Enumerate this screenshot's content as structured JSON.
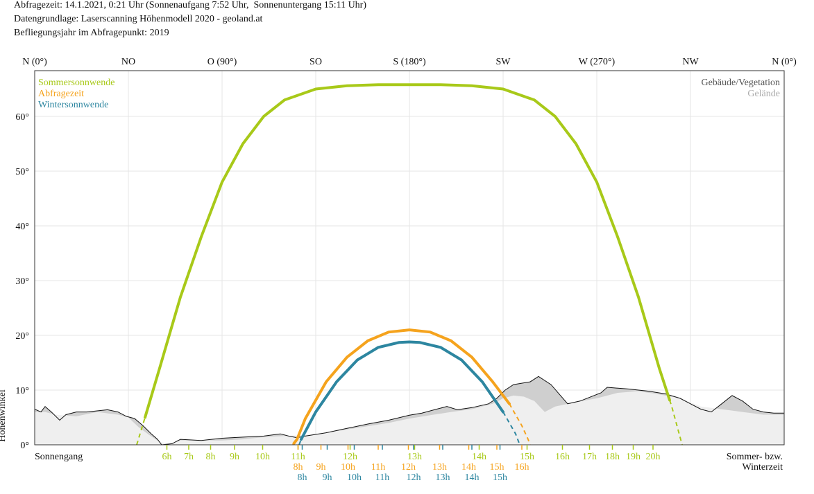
{
  "header": {
    "line1": "Abfragezeit: 14.1.2021, 0:21 Uhr (Sonnenaufgang 7:52 Uhr,  Sonnenuntergang 15:11 Uhr)",
    "line2": "Datengrundlage: Laserscanning Höhenmodell 2020 - geoland.at",
    "line3": "Befliegungsjahr im Abfragepunkt: 2019"
  },
  "colors": {
    "summer": "#a8c919",
    "query": "#f5a31d",
    "winter": "#2d86a0",
    "building": "#cfcfcf",
    "terrain": "#efefef",
    "grid": "#e6e6e6"
  },
  "chart_data": {
    "type": "line",
    "xlabel": "",
    "ylabel": "Höhenwinkel",
    "xlim": [
      0,
      360
    ],
    "ylim": [
      0,
      66
    ],
    "azimuth_ticks": [
      {
        "az": 0,
        "label": "N (0°)"
      },
      {
        "az": 45,
        "label": "NO"
      },
      {
        "az": 90,
        "label": "O (90°)"
      },
      {
        "az": 135,
        "label": "SO"
      },
      {
        "az": 180,
        "label": "S (180°)"
      },
      {
        "az": 225,
        "label": "SW"
      },
      {
        "az": 270,
        "label": "W (270°)"
      },
      {
        "az": 315,
        "label": "NW"
      },
      {
        "az": 360,
        "label": "N (0°)"
      }
    ],
    "elevation_ticks": [
      {
        "v": 0,
        "label": "0°"
      },
      {
        "v": 10,
        "label": "10°"
      },
      {
        "v": 20,
        "label": "20°"
      },
      {
        "v": 30,
        "label": "30°"
      },
      {
        "v": 40,
        "label": "40°"
      },
      {
        "v": 50,
        "label": "50°"
      },
      {
        "v": 60,
        "label": "60°"
      }
    ],
    "legend_left": [
      {
        "label": "Sommersonnwende",
        "color": "#a8c919"
      },
      {
        "label": "Abfragezeit",
        "color": "#f5a31d"
      },
      {
        "label": "Wintersonnwende",
        "color": "#2d86a0"
      }
    ],
    "legend_right": [
      {
        "label": "Gebäude/Vegetation",
        "color": "#555555"
      },
      {
        "label": "Gelände",
        "color": "#aaaaaa"
      }
    ],
    "left_footer": "Sonnengang",
    "right_footer_1": "Sommer- bzw.",
    "right_footer_2": "Winterzeit",
    "series": [
      {
        "name": "Sommersonnwende",
        "color": "#a8c919",
        "points": [
          [
            49,
            0
          ],
          [
            53,
            5
          ],
          [
            60,
            14
          ],
          [
            70,
            27
          ],
          [
            80,
            38
          ],
          [
            90,
            48
          ],
          [
            100,
            55
          ],
          [
            110,
            60
          ],
          [
            120,
            63
          ],
          [
            135,
            65
          ],
          [
            150,
            65.6
          ],
          [
            165,
            65.8
          ],
          [
            180,
            65.8
          ],
          [
            195,
            65.8
          ],
          [
            210,
            65.6
          ],
          [
            225,
            65
          ],
          [
            240,
            63
          ],
          [
            250,
            60
          ],
          [
            260,
            55
          ],
          [
            270,
            48
          ],
          [
            280,
            38
          ],
          [
            290,
            27
          ],
          [
            300,
            14
          ],
          [
            306,
            7
          ],
          [
            311,
            0
          ]
        ],
        "dashed_until": 53,
        "dashed_from": 305
      },
      {
        "name": "Abfragezeit",
        "color": "#f5a31d",
        "points": [
          [
            124,
            0
          ],
          [
            126,
            1
          ],
          [
            130,
            4.8
          ],
          [
            140,
            11.5
          ],
          [
            150,
            16
          ],
          [
            160,
            19
          ],
          [
            170,
            20.6
          ],
          [
            180,
            21
          ],
          [
            190,
            20.6
          ],
          [
            200,
            19
          ],
          [
            210,
            16
          ],
          [
            220,
            11.5
          ],
          [
            228,
            7.5
          ],
          [
            234,
            3.5
          ],
          [
            237,
            1
          ],
          [
            238,
            0
          ]
        ],
        "dashed_until": 124.5,
        "dashed_from": 228
      },
      {
        "name": "Wintersonnwende",
        "color": "#2d86a0",
        "points": [
          [
            127,
            0
          ],
          [
            128,
            1
          ],
          [
            135,
            6
          ],
          [
            145,
            11.5
          ],
          [
            155,
            15.5
          ],
          [
            165,
            17.8
          ],
          [
            175,
            18.7
          ],
          [
            180,
            18.8
          ],
          [
            185,
            18.7
          ],
          [
            195,
            17.8
          ],
          [
            205,
            15.5
          ],
          [
            215,
            11.5
          ],
          [
            225,
            6
          ],
          [
            231,
            2
          ],
          [
            233,
            0
          ]
        ],
        "dashed_until": 128,
        "dashed_from": 225
      }
    ],
    "terrain": [
      [
        0,
        6
      ],
      [
        5,
        6
      ],
      [
        10,
        5.5
      ],
      [
        20,
        5.2
      ],
      [
        30,
        6
      ],
      [
        40,
        5.5
      ],
      [
        45,
        5
      ],
      [
        50,
        3.2
      ],
      [
        55,
        1.8
      ],
      [
        60,
        0.5
      ],
      [
        65,
        0.2
      ],
      [
        70,
        0.8
      ],
      [
        80,
        0.8
      ],
      [
        90,
        0.8
      ],
      [
        100,
        1
      ],
      [
        110,
        1.4
      ],
      [
        120,
        1.6
      ],
      [
        130,
        1.8
      ],
      [
        140,
        2.2
      ],
      [
        150,
        2.8
      ],
      [
        160,
        3.4
      ],
      [
        170,
        4
      ],
      [
        180,
        4.8
      ],
      [
        190,
        5.4
      ],
      [
        200,
        6
      ],
      [
        210,
        6.5
      ],
      [
        220,
        7.5
      ],
      [
        225,
        8.5
      ],
      [
        230,
        9
      ],
      [
        235,
        8.8
      ],
      [
        240,
        8
      ],
      [
        245,
        6
      ],
      [
        250,
        7
      ],
      [
        260,
        7.8
      ],
      [
        270,
        8.5
      ],
      [
        280,
        9.5
      ],
      [
        290,
        9.8
      ],
      [
        300,
        9.2
      ],
      [
        310,
        8.5
      ],
      [
        320,
        7
      ],
      [
        330,
        6.5
      ],
      [
        340,
        6
      ],
      [
        350,
        5.5
      ],
      [
        360,
        5.5
      ]
    ],
    "buildings": [
      [
        0,
        6.5
      ],
      [
        3,
        6
      ],
      [
        5,
        7
      ],
      [
        8,
        6
      ],
      [
        12,
        4.5
      ],
      [
        15,
        5.5
      ],
      [
        20,
        6
      ],
      [
        25,
        6
      ],
      [
        30,
        6.2
      ],
      [
        35,
        6.4
      ],
      [
        40,
        6
      ],
      [
        44,
        5.2
      ],
      [
        48,
        4.8
      ],
      [
        52,
        3.5
      ],
      [
        56,
        2
      ],
      [
        59,
        1
      ],
      [
        61,
        0
      ],
      [
        66,
        0.2
      ],
      [
        70,
        1
      ],
      [
        80,
        0.8
      ],
      [
        90,
        1.2
      ],
      [
        100,
        1.4
      ],
      [
        110,
        1.6
      ],
      [
        118,
        2
      ],
      [
        122,
        1.6
      ],
      [
        126,
        1.3
      ],
      [
        130,
        1.6
      ],
      [
        140,
        2.2
      ],
      [
        150,
        3
      ],
      [
        160,
        3.8
      ],
      [
        170,
        4.5
      ],
      [
        180,
        5.4
      ],
      [
        186,
        5.8
      ],
      [
        192,
        6.4
      ],
      [
        198,
        7
      ],
      [
        203,
        6.4
      ],
      [
        210,
        6.8
      ],
      [
        218,
        7.5
      ],
      [
        222,
        8.5
      ],
      [
        226,
        10
      ],
      [
        230,
        11
      ],
      [
        238,
        11.5
      ],
      [
        242,
        12.5
      ],
      [
        248,
        11
      ],
      [
        256,
        7.5
      ],
      [
        262,
        8
      ],
      [
        272,
        9.5
      ],
      [
        275,
        10.5
      ],
      [
        285,
        10.2
      ],
      [
        295,
        9.8
      ],
      [
        303,
        9.3
      ],
      [
        310,
        8.5
      ],
      [
        315,
        7.5
      ],
      [
        320,
        6.5
      ],
      [
        325,
        6
      ],
      [
        330,
        7.5
      ],
      [
        335,
        9
      ],
      [
        340,
        8
      ],
      [
        345,
        6.5
      ],
      [
        350,
        6
      ],
      [
        355,
        5.8
      ],
      [
        360,
        5.8
      ]
    ],
    "hour_ticks": [
      {
        "series": "Sommersonnwende",
        "color": "#a8c919",
        "row": 0,
        "items": [
          {
            "az": 63.5,
            "label": "6h"
          },
          {
            "az": 74,
            "label": "7h"
          },
          {
            "az": 84.5,
            "label": "8h"
          },
          {
            "az": 96,
            "label": "9h"
          },
          {
            "az": 109.5,
            "label": "10h"
          },
          {
            "az": 126.5,
            "label": "11h"
          },
          {
            "az": 151.5,
            "label": "12h"
          },
          {
            "az": 182.5,
            "label": "13h"
          },
          {
            "az": 213.5,
            "label": "14h"
          },
          {
            "az": 236.5,
            "label": "15h"
          },
          {
            "az": 253.5,
            "label": "16h"
          },
          {
            "az": 266.5,
            "label": "17h"
          },
          {
            "az": 277.5,
            "label": "18h"
          },
          {
            "az": 287.5,
            "label": "19h"
          },
          {
            "az": 297,
            "label": "20h"
          }
        ]
      },
      {
        "series": "Abfragezeit",
        "color": "#f5a31d",
        "row": 1,
        "items": [
          {
            "az": 126.5,
            "label": "8h"
          },
          {
            "az": 137.5,
            "label": "9h"
          },
          {
            "az": 150.5,
            "label": "10h"
          },
          {
            "az": 165,
            "label": "11h"
          },
          {
            "az": 179.5,
            "label": "12h"
          },
          {
            "az": 194.5,
            "label": "13h"
          },
          {
            "az": 208.5,
            "label": "14h"
          },
          {
            "az": 222,
            "label": "15h"
          },
          {
            "az": 234,
            "label": "16h"
          }
        ]
      },
      {
        "series": "Wintersonnwende",
        "color": "#2d86a0",
        "row": 2,
        "items": [
          {
            "az": 128.5,
            "label": "8h"
          },
          {
            "az": 140.5,
            "label": "9h"
          },
          {
            "az": 153.5,
            "label": "10h"
          },
          {
            "az": 167,
            "label": "11h"
          },
          {
            "az": 182,
            "label": "12h"
          },
          {
            "az": 196,
            "label": "13h"
          },
          {
            "az": 210,
            "label": "14h"
          },
          {
            "az": 223.5,
            "label": "15h"
          }
        ]
      }
    ]
  }
}
